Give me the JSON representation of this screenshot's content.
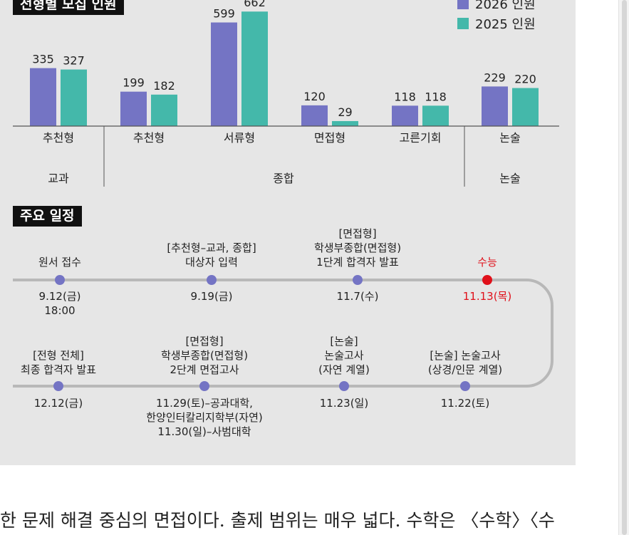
{
  "chart_section_title": "전형별 모집 인원",
  "legend": [
    {
      "label": "2026 인원",
      "color": "#7474c4"
    },
    {
      "label": "2025 인원",
      "color": "#44b8aa"
    }
  ],
  "chart_data": {
    "type": "bar",
    "title": "전형별 모집 인원",
    "categories": [
      "추천형",
      "추천형",
      "서류형",
      "면접형",
      "고른기회",
      "논술"
    ],
    "groups": [
      {
        "label": "교과",
        "categories": [
          "추천형"
        ]
      },
      {
        "label": "종합",
        "categories": [
          "추천형",
          "서류형",
          "면접형",
          "고른기회"
        ]
      },
      {
        "label": "논술",
        "categories": [
          "논술"
        ]
      }
    ],
    "series": [
      {
        "name": "2026 인원",
        "values": [
          335,
          199,
          599,
          120,
          118,
          229
        ],
        "color": "#7474c4"
      },
      {
        "name": "2025 인원",
        "values": [
          327,
          182,
          662,
          29,
          118,
          220
        ],
        "color": "#44b8aa"
      }
    ],
    "ylim": [
      0,
      700
    ],
    "grid": false,
    "legend_position": "top-right"
  },
  "schedule_title": "주요 일정",
  "schedule": {
    "row1": [
      {
        "label": [
          "원서 접수"
        ],
        "date": [
          "9.12(금)",
          "18:00"
        ],
        "highlight": false
      },
      {
        "label": [
          "[추천형–교과, 종합]",
          "대상자 입력"
        ],
        "date": [
          "9.19(금)"
        ],
        "highlight": false
      },
      {
        "label": [
          "[면접형]",
          "학생부종합(면접형)",
          "1단계 합격자 발표"
        ],
        "date": [
          "11.7(수)"
        ],
        "highlight": false
      },
      {
        "label": [
          "수능"
        ],
        "date": [
          "11.13(목)"
        ],
        "highlight": true
      }
    ],
    "row2": [
      {
        "label": [
          "[전형 전체]",
          "최종 합격자 발표"
        ],
        "date": [
          "12.12(금)"
        ]
      },
      {
        "label": [
          "[면접형]",
          "학생부종합(면접형)",
          "2단계 면접고사"
        ],
        "date": [
          "11.29(토)–공과대학,",
          "한양인터칼리지학부(자연)",
          "11.30(일)–사범대학"
        ]
      },
      {
        "label": [
          "[논술]",
          "논술고사",
          "(자연 계열)"
        ],
        "date": [
          "11.23(일)"
        ]
      },
      {
        "label": [
          "[논술] 논술고사",
          "(상경/인문 계열)"
        ],
        "date": [
          "11.22(토)"
        ]
      }
    ],
    "colors": {
      "line": "#b8b8b8",
      "dot": "#7474c4",
      "highlight": "#e0101a"
    }
  },
  "body_text": "한 문제 해결 중심의 면접이다. 출제 범위는 매우 넓다. 수학은 〈수학〉〈수"
}
